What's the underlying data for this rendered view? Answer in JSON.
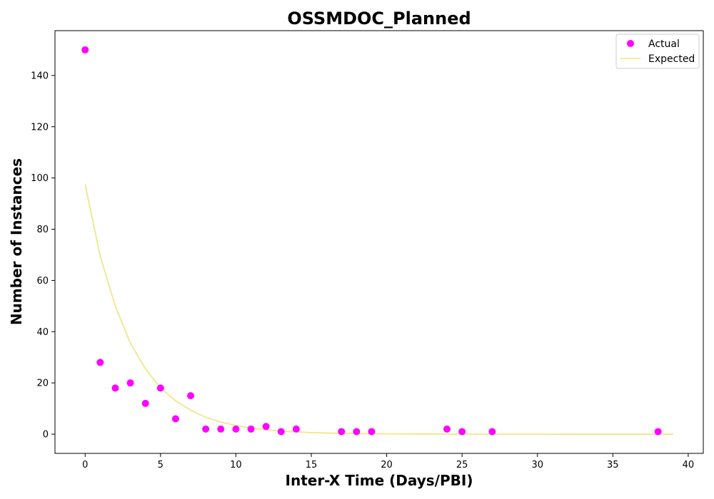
{
  "chart_data": {
    "type": "scatter",
    "title": "OSSMDOC_Planned",
    "xlabel": "Inter-X Time (Days/PBI)",
    "ylabel": "Number of Instances",
    "xlim": [
      -2,
      41
    ],
    "ylim": [
      -7.5,
      157.5
    ],
    "x_ticks": [
      0,
      5,
      10,
      15,
      20,
      25,
      30,
      35,
      40
    ],
    "y_ticks": [
      0,
      20,
      40,
      60,
      80,
      100,
      120,
      140
    ],
    "grid": false,
    "legend_position": "top-right",
    "series": [
      {
        "name": "Actual",
        "kind": "scatter",
        "color": "#ff00ff",
        "points": [
          [
            0,
            150
          ],
          [
            1,
            28
          ],
          [
            2,
            18
          ],
          [
            3,
            20
          ],
          [
            4,
            12
          ],
          [
            5,
            18
          ],
          [
            6,
            6
          ],
          [
            7,
            15
          ],
          [
            8,
            2
          ],
          [
            9,
            2
          ],
          [
            10,
            2
          ],
          [
            11,
            2
          ],
          [
            12,
            3
          ],
          [
            13,
            1
          ],
          [
            14,
            2
          ],
          [
            17,
            1
          ],
          [
            18,
            1
          ],
          [
            19,
            1
          ],
          [
            24,
            2
          ],
          [
            25,
            1
          ],
          [
            27,
            1
          ],
          [
            38,
            1
          ]
        ]
      },
      {
        "name": "Expected",
        "kind": "line",
        "color": "#f0e68c",
        "points": [
          [
            0,
            97.5
          ],
          [
            1,
            69.5
          ],
          [
            2,
            50
          ],
          [
            3,
            35.5
          ],
          [
            4,
            25.5
          ],
          [
            5,
            18
          ],
          [
            6,
            13
          ],
          [
            7,
            9.3
          ],
          [
            8,
            6.6
          ],
          [
            9,
            4.7
          ],
          [
            10,
            3.4
          ],
          [
            11,
            2.4
          ],
          [
            12,
            1.7
          ],
          [
            13,
            1.2
          ],
          [
            14,
            0.9
          ],
          [
            15,
            0.6
          ],
          [
            16,
            0.45
          ],
          [
            17,
            0.32
          ],
          [
            18,
            0.23
          ],
          [
            19,
            0.16
          ],
          [
            20,
            0.12
          ],
          [
            22,
            0.06
          ],
          [
            24,
            0.03
          ],
          [
            26,
            0.015
          ],
          [
            28,
            0.008
          ],
          [
            30,
            0.004
          ],
          [
            32,
            0.002
          ],
          [
            34,
            0.001
          ],
          [
            36,
            0.0005
          ],
          [
            38,
            0.0002
          ],
          [
            39,
            0.0001
          ]
        ]
      }
    ]
  }
}
